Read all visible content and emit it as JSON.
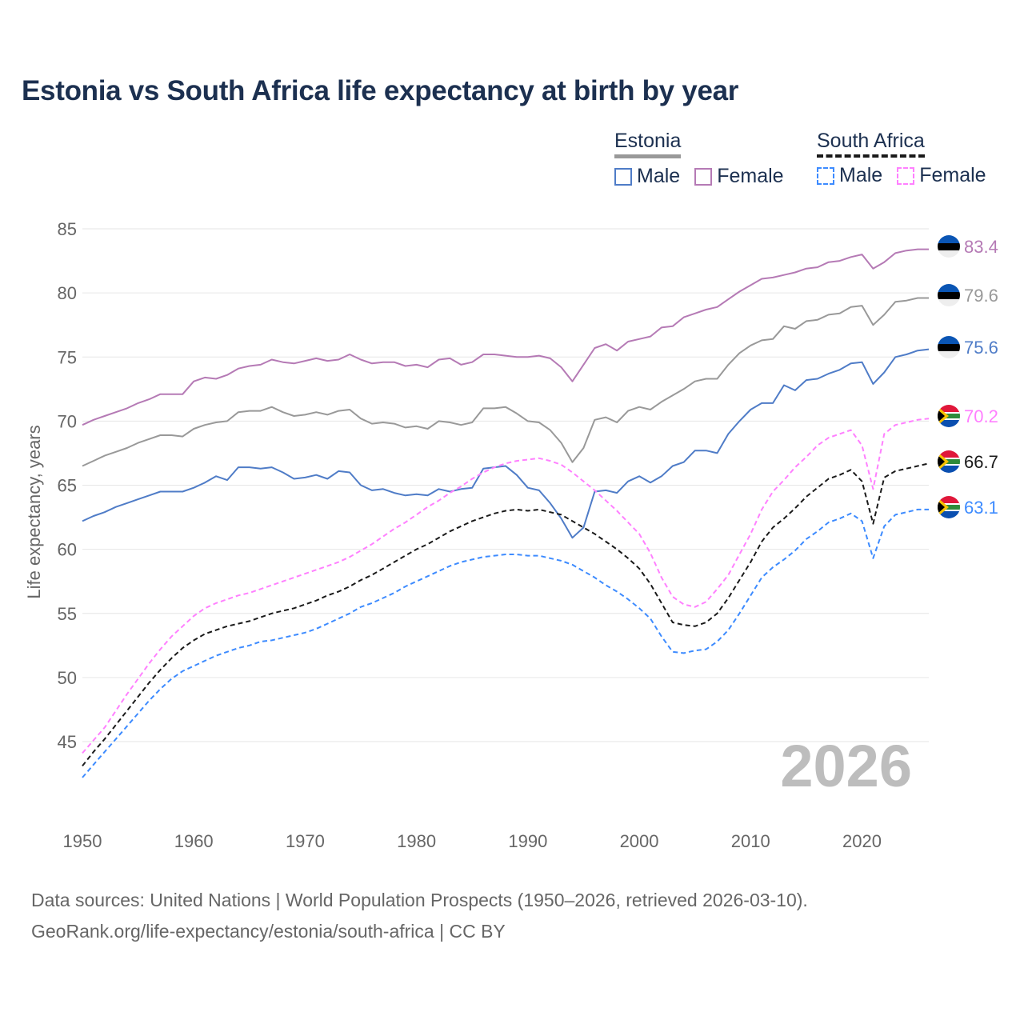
{
  "chart_data": {
    "type": "line",
    "title": "Estonia vs South Africa life expectancy at birth by year",
    "xlabel": "",
    "ylabel": "Life expectancy, years",
    "xlim": [
      1950,
      2026
    ],
    "ylim": [
      40,
      86
    ],
    "x_ticks": [
      "1950",
      "1960",
      "1970",
      "1980",
      "1990",
      "2000",
      "2010",
      "2020"
    ],
    "y_ticks": [
      "45",
      "50",
      "55",
      "60",
      "65",
      "70",
      "75",
      "80",
      "85"
    ],
    "grid": true,
    "year_watermark": "2026",
    "legend": {
      "placement": "top-right",
      "groups": [
        {
          "name": "Estonia",
          "items": [
            "Male",
            "Female"
          ]
        },
        {
          "name": "South Africa",
          "items": [
            "Male",
            "Female"
          ]
        }
      ]
    },
    "x_start": 1950,
    "series": [
      {
        "name": "Estonia Female",
        "country": "Estonia",
        "color": "#b57ab5",
        "dashed": false,
        "end_label": "83.4",
        "values": [
          69.7,
          70.1,
          70.4,
          70.7,
          71.0,
          71.4,
          71.7,
          72.1,
          72.1,
          72.1,
          73.1,
          73.4,
          73.3,
          73.6,
          74.1,
          74.3,
          74.4,
          74.8,
          74.6,
          74.5,
          74.7,
          74.9,
          74.7,
          74.8,
          75.2,
          74.8,
          74.5,
          74.6,
          74.6,
          74.3,
          74.4,
          74.2,
          74.8,
          74.9,
          74.4,
          74.6,
          75.2,
          75.2,
          75.1,
          75.0,
          75.0,
          75.1,
          74.9,
          74.2,
          73.1,
          74.4,
          75.7,
          76.0,
          75.5,
          76.2,
          76.4,
          76.6,
          77.3,
          77.4,
          78.1,
          78.4,
          78.7,
          78.9,
          79.5,
          80.1,
          80.6,
          81.1,
          81.2,
          81.4,
          81.6,
          81.9,
          82.0,
          82.4,
          82.5,
          82.8,
          83.0,
          81.9,
          82.4,
          83.1,
          83.3,
          83.4,
          83.4
        ]
      },
      {
        "name": "Estonia Total",
        "country": "Estonia",
        "color": "#999999",
        "dashed": false,
        "end_label": "79.6",
        "values": [
          66.5,
          66.9,
          67.3,
          67.6,
          67.9,
          68.3,
          68.6,
          68.9,
          68.9,
          68.8,
          69.4,
          69.7,
          69.9,
          70.0,
          70.7,
          70.8,
          70.8,
          71.1,
          70.7,
          70.4,
          70.5,
          70.7,
          70.5,
          70.8,
          70.9,
          70.2,
          69.8,
          69.9,
          69.8,
          69.5,
          69.6,
          69.4,
          70.0,
          69.9,
          69.7,
          69.9,
          71.0,
          71.0,
          71.1,
          70.6,
          70.0,
          69.9,
          69.3,
          68.3,
          66.8,
          67.9,
          70.1,
          70.3,
          69.9,
          70.8,
          71.1,
          70.9,
          71.5,
          72.0,
          72.5,
          73.1,
          73.3,
          73.3,
          74.4,
          75.3,
          75.9,
          76.3,
          76.4,
          77.4,
          77.2,
          77.8,
          77.9,
          78.3,
          78.4,
          78.9,
          79.0,
          77.5,
          78.3,
          79.3,
          79.4,
          79.6,
          79.6
        ]
      },
      {
        "name": "Estonia Male",
        "country": "Estonia",
        "color": "#4f7cc7",
        "dashed": false,
        "end_label": "75.6",
        "values": [
          62.2,
          62.6,
          62.9,
          63.3,
          63.6,
          63.9,
          64.2,
          64.5,
          64.5,
          64.5,
          64.8,
          65.2,
          65.7,
          65.4,
          66.4,
          66.4,
          66.3,
          66.4,
          66.0,
          65.5,
          65.6,
          65.8,
          65.5,
          66.1,
          66.0,
          65.0,
          64.6,
          64.7,
          64.4,
          64.2,
          64.3,
          64.2,
          64.7,
          64.5,
          64.7,
          64.8,
          66.3,
          66.4,
          66.5,
          65.8,
          64.8,
          64.6,
          63.6,
          62.4,
          60.9,
          61.7,
          64.5,
          64.6,
          64.4,
          65.3,
          65.7,
          65.2,
          65.7,
          66.5,
          66.8,
          67.7,
          67.7,
          67.5,
          69.0,
          70.0,
          70.9,
          71.4,
          71.4,
          72.8,
          72.4,
          73.2,
          73.3,
          73.7,
          74.0,
          74.5,
          74.6,
          72.9,
          73.8,
          75.0,
          75.2,
          75.5,
          75.6
        ]
      },
      {
        "name": "South Africa Female",
        "country": "South Africa",
        "color": "#ff80ff",
        "dashed": true,
        "end_label": "70.2",
        "values": [
          44.1,
          45.1,
          46.1,
          47.4,
          48.7,
          49.9,
          51.1,
          52.2,
          53.2,
          54.0,
          54.8,
          55.4,
          55.8,
          56.1,
          56.4,
          56.6,
          56.9,
          57.2,
          57.5,
          57.8,
          58.1,
          58.4,
          58.7,
          59.0,
          59.4,
          59.9,
          60.4,
          61.0,
          61.6,
          62.1,
          62.7,
          63.3,
          63.8,
          64.4,
          64.9,
          65.5,
          66.0,
          66.4,
          66.7,
          66.9,
          67.0,
          67.1,
          66.9,
          66.6,
          66.0,
          65.3,
          64.6,
          63.8,
          63.0,
          62.1,
          61.2,
          59.7,
          57.8,
          56.3,
          55.7,
          55.5,
          55.9,
          56.9,
          58.0,
          59.6,
          61.2,
          63.1,
          64.5,
          65.4,
          66.4,
          67.2,
          68.1,
          68.7,
          69.0,
          69.3,
          68.1,
          64.7,
          69.0,
          69.7,
          69.9,
          70.1,
          70.2
        ]
      },
      {
        "name": "South Africa Total",
        "country": "South Africa",
        "color": "#1a1a1a",
        "dashed": true,
        "end_label": "66.7",
        "values": [
          43.1,
          44.2,
          45.2,
          46.3,
          47.4,
          48.5,
          49.6,
          50.6,
          51.5,
          52.3,
          52.9,
          53.4,
          53.7,
          54.0,
          54.2,
          54.4,
          54.7,
          55.0,
          55.2,
          55.4,
          55.7,
          56.0,
          56.4,
          56.7,
          57.1,
          57.6,
          58.0,
          58.5,
          59.0,
          59.5,
          60.0,
          60.4,
          60.9,
          61.4,
          61.8,
          62.2,
          62.5,
          62.8,
          63.0,
          63.1,
          63.0,
          63.1,
          62.9,
          62.7,
          62.2,
          61.7,
          61.2,
          60.6,
          60.0,
          59.3,
          58.5,
          57.3,
          55.8,
          54.3,
          54.1,
          54.0,
          54.3,
          55.0,
          56.2,
          57.6,
          59.0,
          60.6,
          61.7,
          62.4,
          63.2,
          64.1,
          64.8,
          65.5,
          65.8,
          66.2,
          65.3,
          62.0,
          65.6,
          66.1,
          66.3,
          66.5,
          66.7
        ]
      },
      {
        "name": "South Africa Male",
        "country": "South Africa",
        "color": "#3d8bff",
        "dashed": true,
        "end_label": "63.1",
        "values": [
          42.2,
          43.2,
          44.2,
          45.2,
          46.2,
          47.2,
          48.2,
          49.1,
          49.9,
          50.5,
          50.9,
          51.3,
          51.7,
          52.0,
          52.3,
          52.5,
          52.8,
          52.9,
          53.1,
          53.3,
          53.5,
          53.8,
          54.2,
          54.6,
          55.0,
          55.5,
          55.8,
          56.2,
          56.6,
          57.1,
          57.5,
          57.9,
          58.3,
          58.7,
          59.0,
          59.2,
          59.4,
          59.5,
          59.6,
          59.6,
          59.5,
          59.5,
          59.3,
          59.1,
          58.8,
          58.3,
          57.8,
          57.2,
          56.7,
          56.1,
          55.4,
          54.6,
          53.2,
          52.0,
          51.9,
          52.1,
          52.2,
          52.8,
          53.7,
          55.0,
          56.4,
          57.8,
          58.6,
          59.2,
          59.9,
          60.8,
          61.4,
          62.1,
          62.4,
          62.8,
          62.2,
          59.3,
          61.8,
          62.7,
          62.9,
          63.1,
          63.1
        ]
      }
    ]
  },
  "footer": {
    "line1": "Data sources: United Nations | World Population Prospects (1950–2026, retrieved 2026-03-10).",
    "line2": "GeoRank.org/life-expectancy/estonia/south-africa | CC BY"
  }
}
